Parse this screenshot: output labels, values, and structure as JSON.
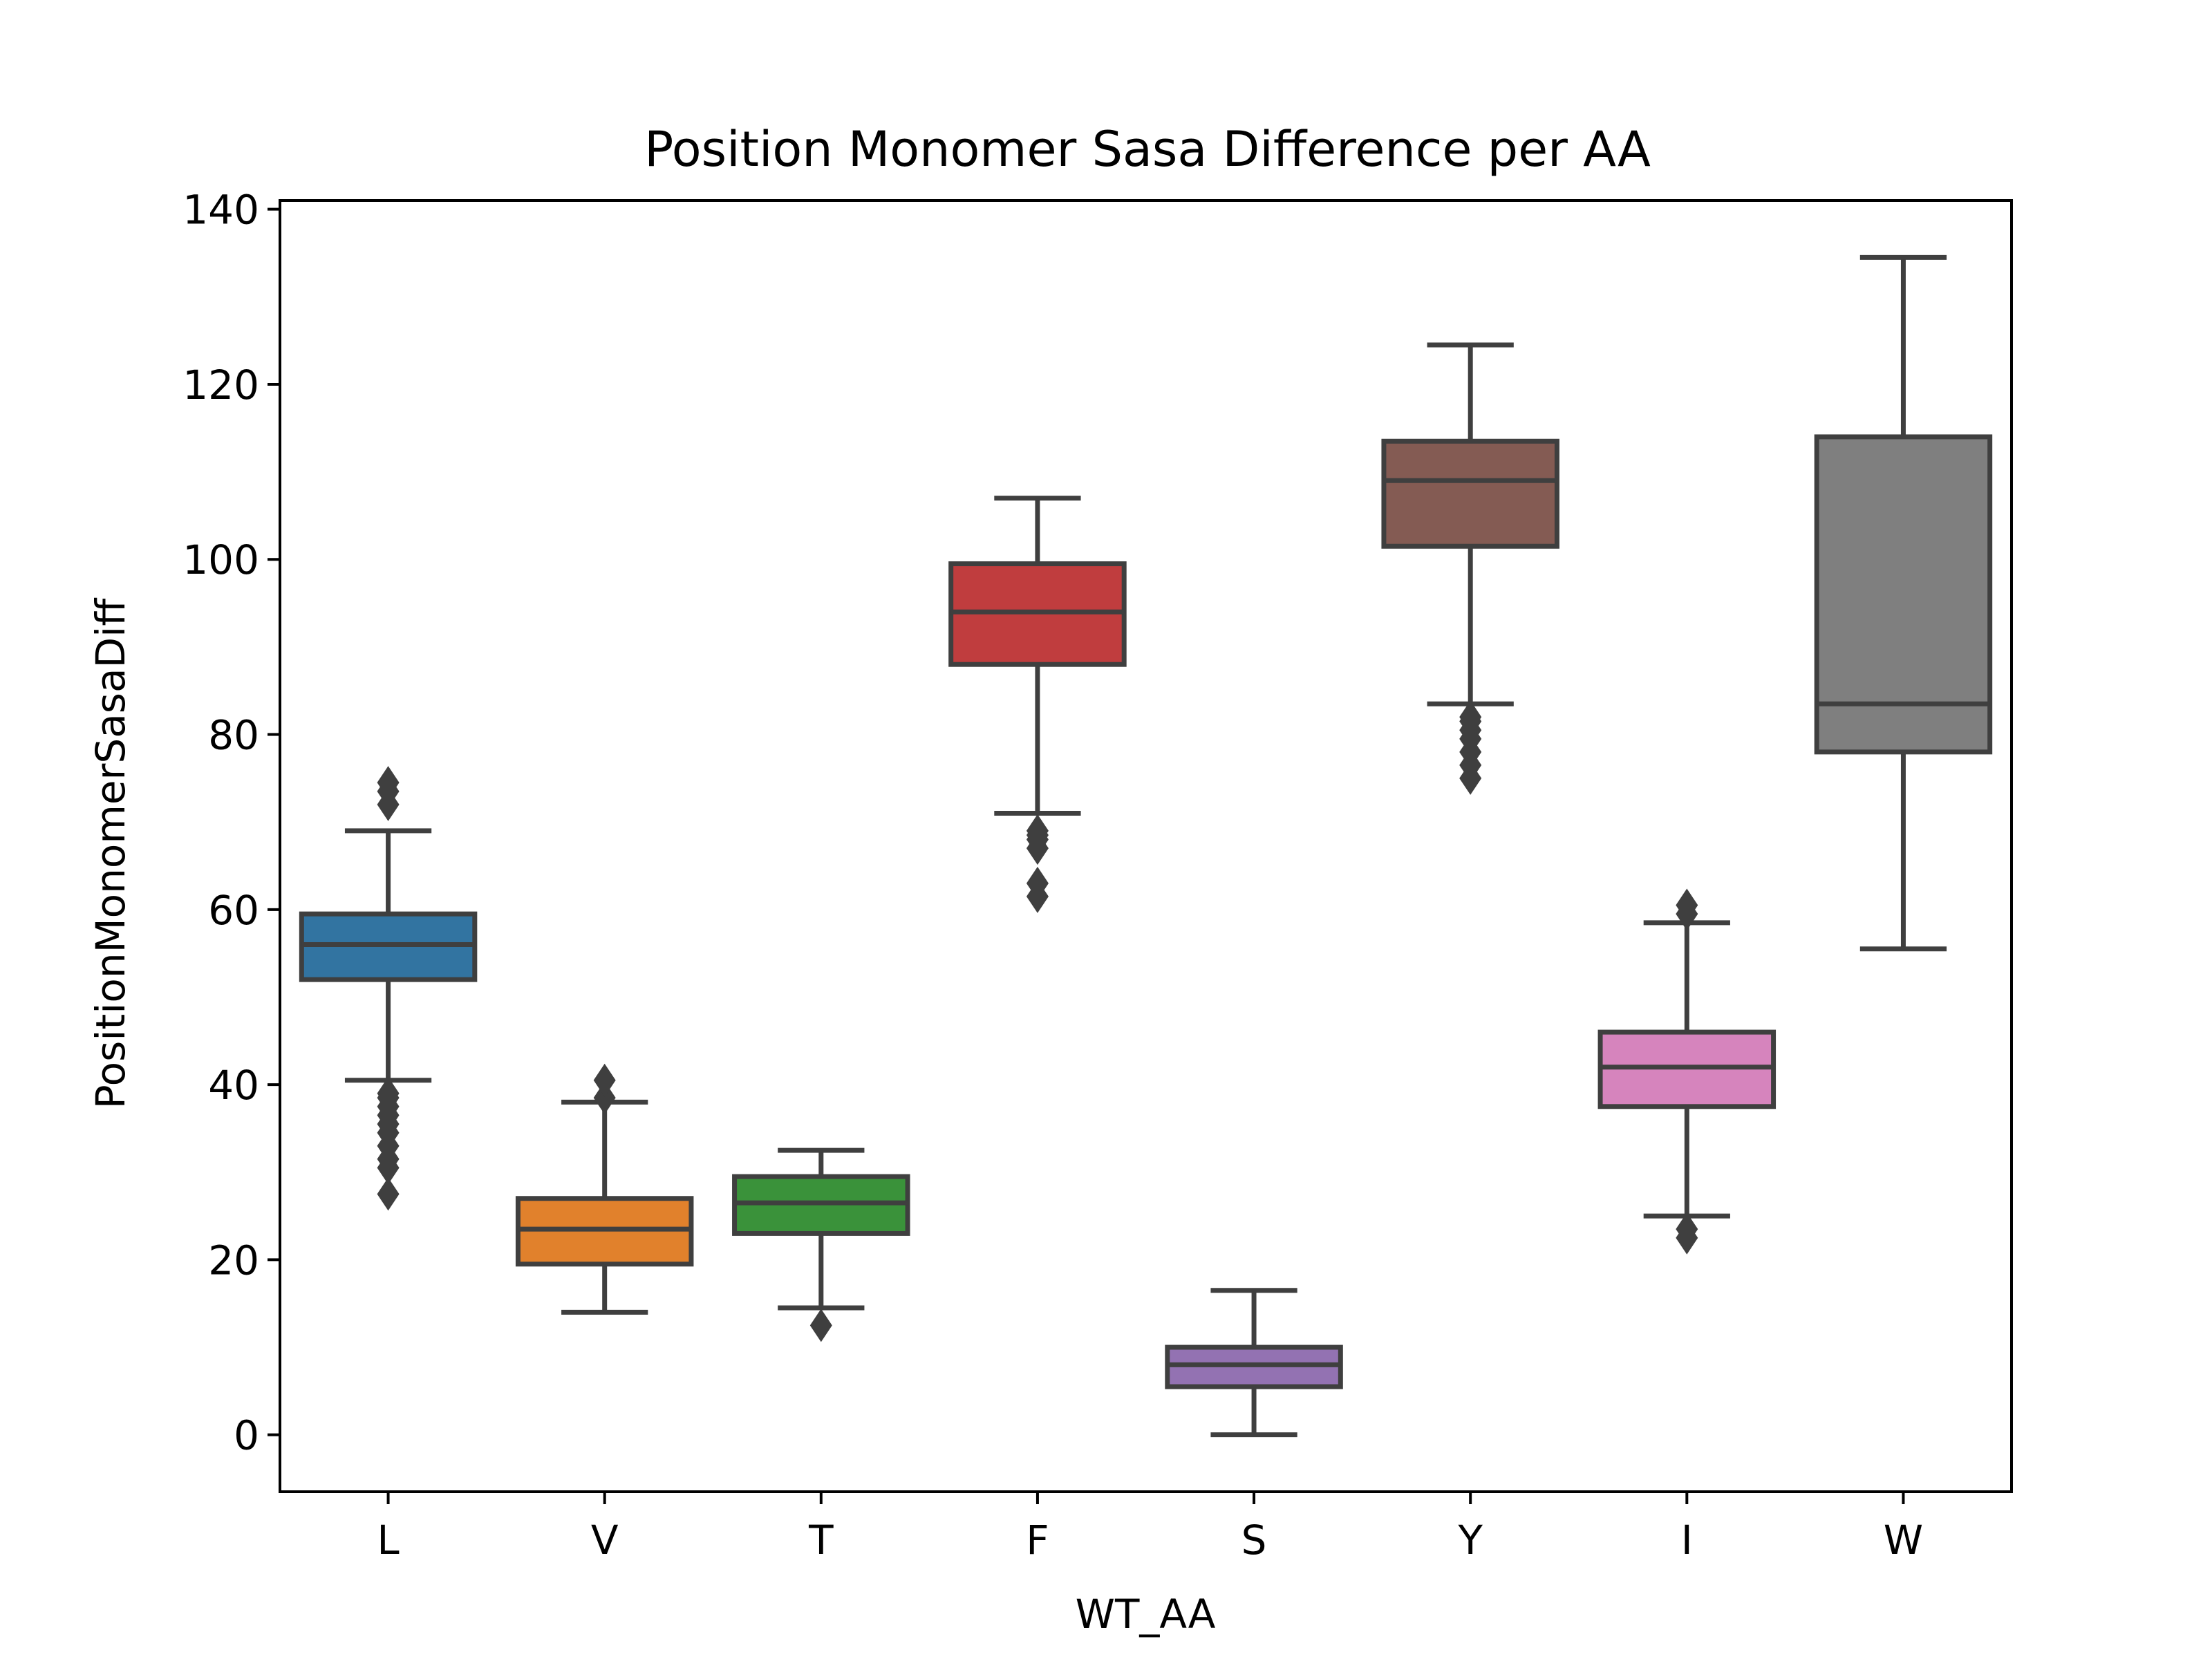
{
  "chart_data": {
    "type": "box",
    "title": "Position Monomer Sasa Difference per AA",
    "xlabel": "WT_AA",
    "ylabel": "PositionMonomerSasaDiff",
    "ylim": [
      -6.5,
      141
    ],
    "y_ticks": [
      0,
      20,
      40,
      60,
      80,
      100,
      120,
      140
    ],
    "y_tick_labels": [
      "0",
      "20",
      "40",
      "60",
      "80",
      "100",
      "120",
      "140"
    ],
    "grid": false,
    "legend": "none",
    "edge_color": "#3f3f3f",
    "categories": [
      "L",
      "V",
      "T",
      "F",
      "S",
      "Y",
      "I",
      "W"
    ],
    "boxes": [
      {
        "category": "L",
        "color": "#3274a1",
        "whisker_low": 40.5,
        "q1": 52,
        "median": 56,
        "q3": 59.5,
        "whisker_high": 69,
        "outliers": [
          27.5,
          30.5,
          31.5,
          33,
          34.5,
          35.5,
          36.5,
          37.5,
          38.5,
          39,
          72,
          73.5,
          74.5
        ]
      },
      {
        "category": "V",
        "color": "#e1812c",
        "whisker_low": 14,
        "q1": 19.5,
        "median": 23.5,
        "q3": 27,
        "whisker_high": 38,
        "outliers": [
          38.5,
          40.5
        ]
      },
      {
        "category": "T",
        "color": "#3a923a",
        "whisker_low": 14.5,
        "q1": 23,
        "median": 26.5,
        "q3": 29.5,
        "whisker_high": 32.5,
        "outliers": [
          12.5
        ]
      },
      {
        "category": "F",
        "color": "#c03d3e",
        "whisker_low": 71,
        "q1": 88,
        "median": 94,
        "q3": 99.5,
        "whisker_high": 107,
        "outliers": [
          61.5,
          63,
          67,
          68,
          68.5,
          69
        ]
      },
      {
        "category": "S",
        "color": "#9372b2",
        "whisker_low": 0,
        "q1": 5.5,
        "median": 8,
        "q3": 10,
        "whisker_high": 16.5,
        "outliers": []
      },
      {
        "category": "Y",
        "color": "#845b53",
        "whisker_low": 83.5,
        "q1": 101.5,
        "median": 109,
        "q3": 113.5,
        "whisker_high": 124.5,
        "outliers": [
          75,
          76.5,
          78,
          79.5,
          80.5,
          81.5,
          82
        ]
      },
      {
        "category": "I",
        "color": "#d684bd",
        "whisker_low": 25,
        "q1": 37.5,
        "median": 42,
        "q3": 46,
        "whisker_high": 58.5,
        "outliers": [
          22.5,
          23.5,
          59.5,
          60.5
        ]
      },
      {
        "category": "W",
        "color": "#7f7f7f",
        "whisker_low": 55.5,
        "q1": 78,
        "median": 83.5,
        "q3": 114,
        "whisker_high": 134.5,
        "outliers": []
      }
    ]
  }
}
